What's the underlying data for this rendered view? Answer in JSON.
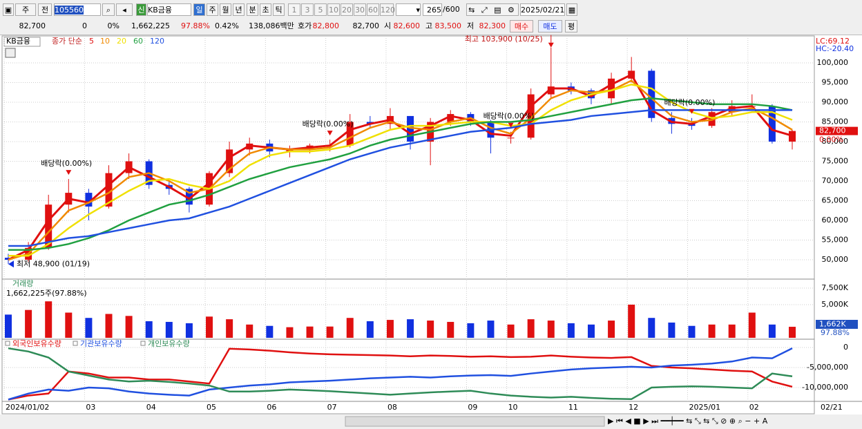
{
  "toolbar": {
    "row1": [
      "주",
      "전",
      "105560",
      "신",
      "KB금융",
      "일",
      "주",
      "월",
      "년",
      "분",
      "초",
      "틱",
      "1",
      "3",
      "5",
      "10",
      "20",
      "30",
      "60",
      "120",
      "265",
      "/600",
      "2025/02/21"
    ],
    "row2": [
      "82,700",
      "0",
      "0%",
      "1,662,225",
      "97.88%",
      "0.42%",
      "138,086백만",
      "호가",
      "82,800",
      "82,700",
      "시",
      "82,600",
      "고",
      "83,500",
      "저",
      "82,300",
      "매수",
      "매도",
      "평"
    ]
  },
  "chart_data": [
    {
      "type": "candlestick",
      "name": "KB금융",
      "legend_title": "종가 단순",
      "lc_label": "LC:69.12",
      "hc_label": "HC:-20.40",
      "up_color": "#e01010",
      "down_color": "#1030e0",
      "categories": [
        "2024/01/02",
        null,
        null,
        null,
        "03",
        null,
        null,
        "04",
        null,
        null,
        "05",
        null,
        null,
        "06",
        null,
        null,
        "07",
        null,
        null,
        "08",
        null,
        null,
        null,
        "09",
        null,
        "10",
        null,
        null,
        "11",
        null,
        null,
        "12",
        null,
        null,
        "2025/01",
        null,
        null,
        "02",
        null,
        null
      ],
      "x_end_label": "02/21",
      "open": [
        50500,
        50000,
        53000,
        64000,
        67000,
        63500,
        72000,
        75000,
        69000,
        68000,
        64000,
        72000,
        78000,
        79500,
        77500,
        78000,
        79000,
        79000,
        85000,
        84500,
        86500,
        80000,
        85000,
        87000,
        85000,
        81000,
        81000,
        92000,
        94000,
        93000,
        91000,
        96000,
        98000,
        86000,
        84500,
        84000,
        87500,
        89000,
        89000,
        80000
      ],
      "high": [
        51500,
        54500,
        66500,
        70500,
        68000,
        74000,
        77000,
        75500,
        70000,
        68500,
        72500,
        80000,
        81000,
        80500,
        79000,
        79500,
        80500,
        87000,
        86500,
        88500,
        86500,
        86000,
        88000,
        87500,
        85500,
        82500,
        93500,
        103900,
        95000,
        93500,
        97500,
        101500,
        98500,
        87500,
        86000,
        88500,
        90500,
        92000,
        89500,
        83000
      ],
      "low": [
        48900,
        49500,
        52500,
        62000,
        60000,
        63000,
        70500,
        68000,
        66500,
        62000,
        63500,
        71000,
        76500,
        76000,
        76000,
        77000,
        77500,
        78500,
        83500,
        83000,
        78000,
        74000,
        84000,
        84000,
        77000,
        79500,
        80500,
        91000,
        92000,
        89500,
        89500,
        95000,
        85000,
        82000,
        83000,
        83500,
        86500,
        88000,
        79500,
        78000
      ],
      "close": [
        50000,
        53000,
        64000,
        67000,
        63500,
        72000,
        75000,
        69000,
        68000,
        64000,
        72000,
        78000,
        79500,
        77500,
        78000,
        79000,
        79000,
        85000,
        84500,
        86500,
        80000,
        85000,
        87000,
        85000,
        81000,
        81000,
        92000,
        94000,
        93000,
        91000,
        96000,
        98000,
        86000,
        84500,
        84000,
        87500,
        89000,
        89000,
        80000,
        82700
      ],
      "last_value_label": "82,700",
      "last_change_label": "0.00%",
      "series": [
        {
          "name": "5",
          "color": "#e01010",
          "values": [
            50000,
            52500,
            60000,
            65500,
            64500,
            69000,
            73500,
            71000,
            68500,
            65500,
            69500,
            76000,
            79000,
            78500,
            78000,
            78500,
            79000,
            83000,
            84500,
            85500,
            82000,
            84000,
            86500,
            85500,
            82000,
            81500,
            89000,
            93500,
            93500,
            91500,
            94500,
            97000,
            88000,
            85000,
            84500,
            86500,
            88500,
            89000,
            83000,
            81500
          ]
        },
        {
          "name": "10",
          "color": "#f08a00",
          "values": [
            50000,
            51500,
            57000,
            62500,
            64500,
            67000,
            71000,
            72000,
            70000,
            67000,
            68000,
            73000,
            77000,
            78500,
            78000,
            78000,
            78500,
            81000,
            83500,
            85000,
            83500,
            83000,
            85000,
            86000,
            83500,
            82000,
            86000,
            91000,
            93000,
            92500,
            93000,
            95500,
            91000,
            86500,
            85000,
            85500,
            87500,
            88500,
            86000,
            83000
          ]
        },
        {
          "name": "20",
          "color": "#f0e000",
          "values": [
            51000,
            51000,
            54000,
            58000,
            61500,
            64500,
            67500,
            70000,
            70500,
            69000,
            68000,
            70000,
            74000,
            76500,
            77500,
            77500,
            78000,
            79000,
            81000,
            83000,
            84000,
            84000,
            84500,
            85000,
            85000,
            84000,
            84500,
            88000,
            90500,
            92000,
            93000,
            94500,
            93500,
            90000,
            87500,
            86000,
            86500,
            87500,
            87500,
            85500
          ]
        },
        {
          "name": "60",
          "color": "#20a040",
          "values": [
            52500,
            52500,
            53000,
            54000,
            55500,
            57500,
            60000,
            62000,
            64000,
            65000,
            66500,
            68500,
            70500,
            72000,
            73500,
            74500,
            75500,
            77000,
            79000,
            80500,
            81500,
            82500,
            83500,
            84500,
            85000,
            85000,
            85500,
            86500,
            87500,
            88500,
            89500,
            90500,
            91000,
            90500,
            90000,
            89500,
            89500,
            89500,
            89000,
            88000
          ]
        },
        {
          "name": "120",
          "color": "#2050e0",
          "values": [
            53500,
            53500,
            54500,
            55500,
            56000,
            57000,
            58000,
            59000,
            60000,
            60500,
            62000,
            63500,
            65500,
            67500,
            69500,
            71500,
            73500,
            75500,
            77000,
            78500,
            79500,
            80500,
            81500,
            82500,
            83000,
            83500,
            84500,
            85000,
            85500,
            86500,
            87000,
            87500,
            88000,
            88000,
            88000,
            88000,
            88000,
            88000,
            88000,
            88000
          ]
        }
      ],
      "annotations": [
        {
          "text": "최고 103,900 (10/25)",
          "index": 27,
          "value": 103900
        },
        {
          "text": "최저 48,900 (01/19)",
          "index": 0,
          "value": 48900
        },
        {
          "text": "배당락(0.00%)",
          "index": 3
        },
        {
          "text": "배당락(0.00%)",
          "index": 16
        },
        {
          "text": "배당락(0.00%)",
          "index": 25
        },
        {
          "text": "배당락(0.00%)",
          "index": 34
        }
      ],
      "ylim": [
        45260,
        106840
      ],
      "grid": true,
      "yticks": [
        {
          "value": 50000,
          "label": "50,000"
        },
        {
          "value": 55000,
          "label": "55,000"
        },
        {
          "value": 60000,
          "label": "60,000"
        },
        {
          "value": 65000,
          "label": "65,000"
        },
        {
          "value": 70000,
          "label": "70,000"
        },
        {
          "value": 75000,
          "label": "75,000"
        },
        {
          "value": 80000,
          "label": "80,000"
        },
        {
          "value": 85000,
          "label": "85,000"
        },
        {
          "value": 90000,
          "label": "90,000"
        },
        {
          "value": 95000,
          "label": "95,000"
        },
        {
          "value": 100000,
          "label": "100,000"
        }
      ]
    },
    {
      "type": "bar",
      "title": "거래량",
      "info": "1,662,225주(97.88%)",
      "up_color": "#e01010",
      "down_color": "#1030e0",
      "values": [
        3500,
        4200,
        5500,
        3800,
        3000,
        3600,
        3300,
        2500,
        2400,
        2200,
        3200,
        2800,
        2000,
        1800,
        1600,
        1700,
        1700,
        3000,
        2500,
        2700,
        2800,
        2600,
        2400,
        2200,
        2600,
        2000,
        2800,
        2600,
        2200,
        2000,
        2600,
        5000,
        3000,
        2300,
        1800,
        2000,
        2000,
        3800,
        2000,
        1662.225
      ],
      "last_value_label": "1,662K",
      "last_ratio_label": "97.88%",
      "ylim": [
        0,
        8750
      ],
      "yticks": [
        {
          "value": 5000,
          "label": "5,000K"
        },
        {
          "value": 7500,
          "label": "7,500K"
        }
      ]
    },
    {
      "type": "line",
      "series": [
        {
          "name": "외국인보유수량",
          "color": "#e01010",
          "values": [
            -13000000,
            -12000000,
            -11500000,
            -6000000,
            -6500000,
            -7500000,
            -7500000,
            -8000000,
            -8000000,
            -8500000,
            -9000000,
            -300000,
            -500000,
            -800000,
            -1200000,
            -1500000,
            -1700000,
            -1800000,
            -1900000,
            -2000000,
            -2200000,
            -2000000,
            -2100000,
            -2300000,
            -2200000,
            -2400000,
            -2300000,
            -2000000,
            -2300000,
            -2500000,
            -2600000,
            -2400000,
            -4600000,
            -5000000,
            -5200000,
            -5500000,
            -5800000,
            -6000000,
            -8500000,
            -9800000
          ]
        },
        {
          "name": "기관보유수량",
          "color": "#2050e0",
          "values": [
            -13000000,
            -11500000,
            -10500000,
            -10800000,
            -10000000,
            -10200000,
            -11000000,
            -11500000,
            -11800000,
            -12000000,
            -10500000,
            -10000000,
            -9500000,
            -9200000,
            -8700000,
            -8500000,
            -8300000,
            -8000000,
            -7700000,
            -7500000,
            -7300000,
            -7500000,
            -7200000,
            -7000000,
            -6900000,
            -7100000,
            -6500000,
            -6000000,
            -5500000,
            -5200000,
            -5000000,
            -4800000,
            -5000000,
            -4500000,
            -4300000,
            -4000000,
            -3500000,
            -2500000,
            -2700000,
            -200000
          ]
        },
        {
          "name": "개인보유수량",
          "color": "#2e8b57",
          "values": [
            -200000,
            -1000000,
            -2500000,
            -6000000,
            -7000000,
            -8000000,
            -8500000,
            -8300000,
            -8600000,
            -9000000,
            -9500000,
            -11000000,
            -11000000,
            -10800000,
            -10500000,
            -10700000,
            -10900000,
            -11200000,
            -11500000,
            -11800000,
            -11500000,
            -11200000,
            -11000000,
            -10800000,
            -11500000,
            -12000000,
            -12300000,
            -12500000,
            -12300000,
            -12600000,
            -12800000,
            -12900000,
            -10000000,
            -9800000,
            -9700000,
            -9800000,
            -10000000,
            -10200000,
            -6500000,
            -7200000
          ]
        }
      ],
      "ylim": [
        -13280000,
        1900000
      ],
      "yticks": [
        0,
        {
          "value": -5000000,
          "label": "-5,000,000"
        },
        {
          "value": -10000000,
          "label": "-10,000,000"
        }
      ]
    }
  ]
}
